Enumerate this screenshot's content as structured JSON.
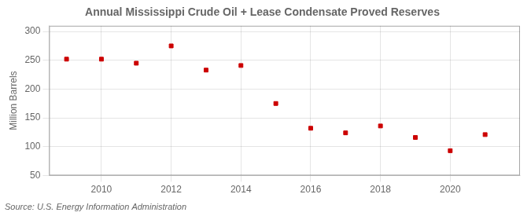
{
  "chart_data": {
    "type": "scatter",
    "title": "Annual Mississippi Crude Oil + Lease Condensate Proved Reserves",
    "y_label": "Million Barrels",
    "annotations": [
      "Source: U.S. Energy Information Administration"
    ],
    "x": [
      2009,
      2010,
      2011,
      2012,
      2013,
      2014,
      2015,
      2016,
      2017,
      2018,
      2019,
      2020,
      2021
    ],
    "values": [
      252,
      252,
      245,
      275,
      233,
      241,
      175,
      132,
      124,
      136,
      116,
      93,
      121
    ],
    "color": "#cc0000",
    "marker": "square",
    "xlim": [
      2008.5,
      2022.0
    ],
    "xticks": [
      2010,
      2012,
      2014,
      2016,
      2018,
      2020
    ],
    "ylim": [
      50,
      310
    ],
    "yticks": [
      50,
      100,
      150,
      200,
      250,
      300
    ],
    "grid": true
  }
}
